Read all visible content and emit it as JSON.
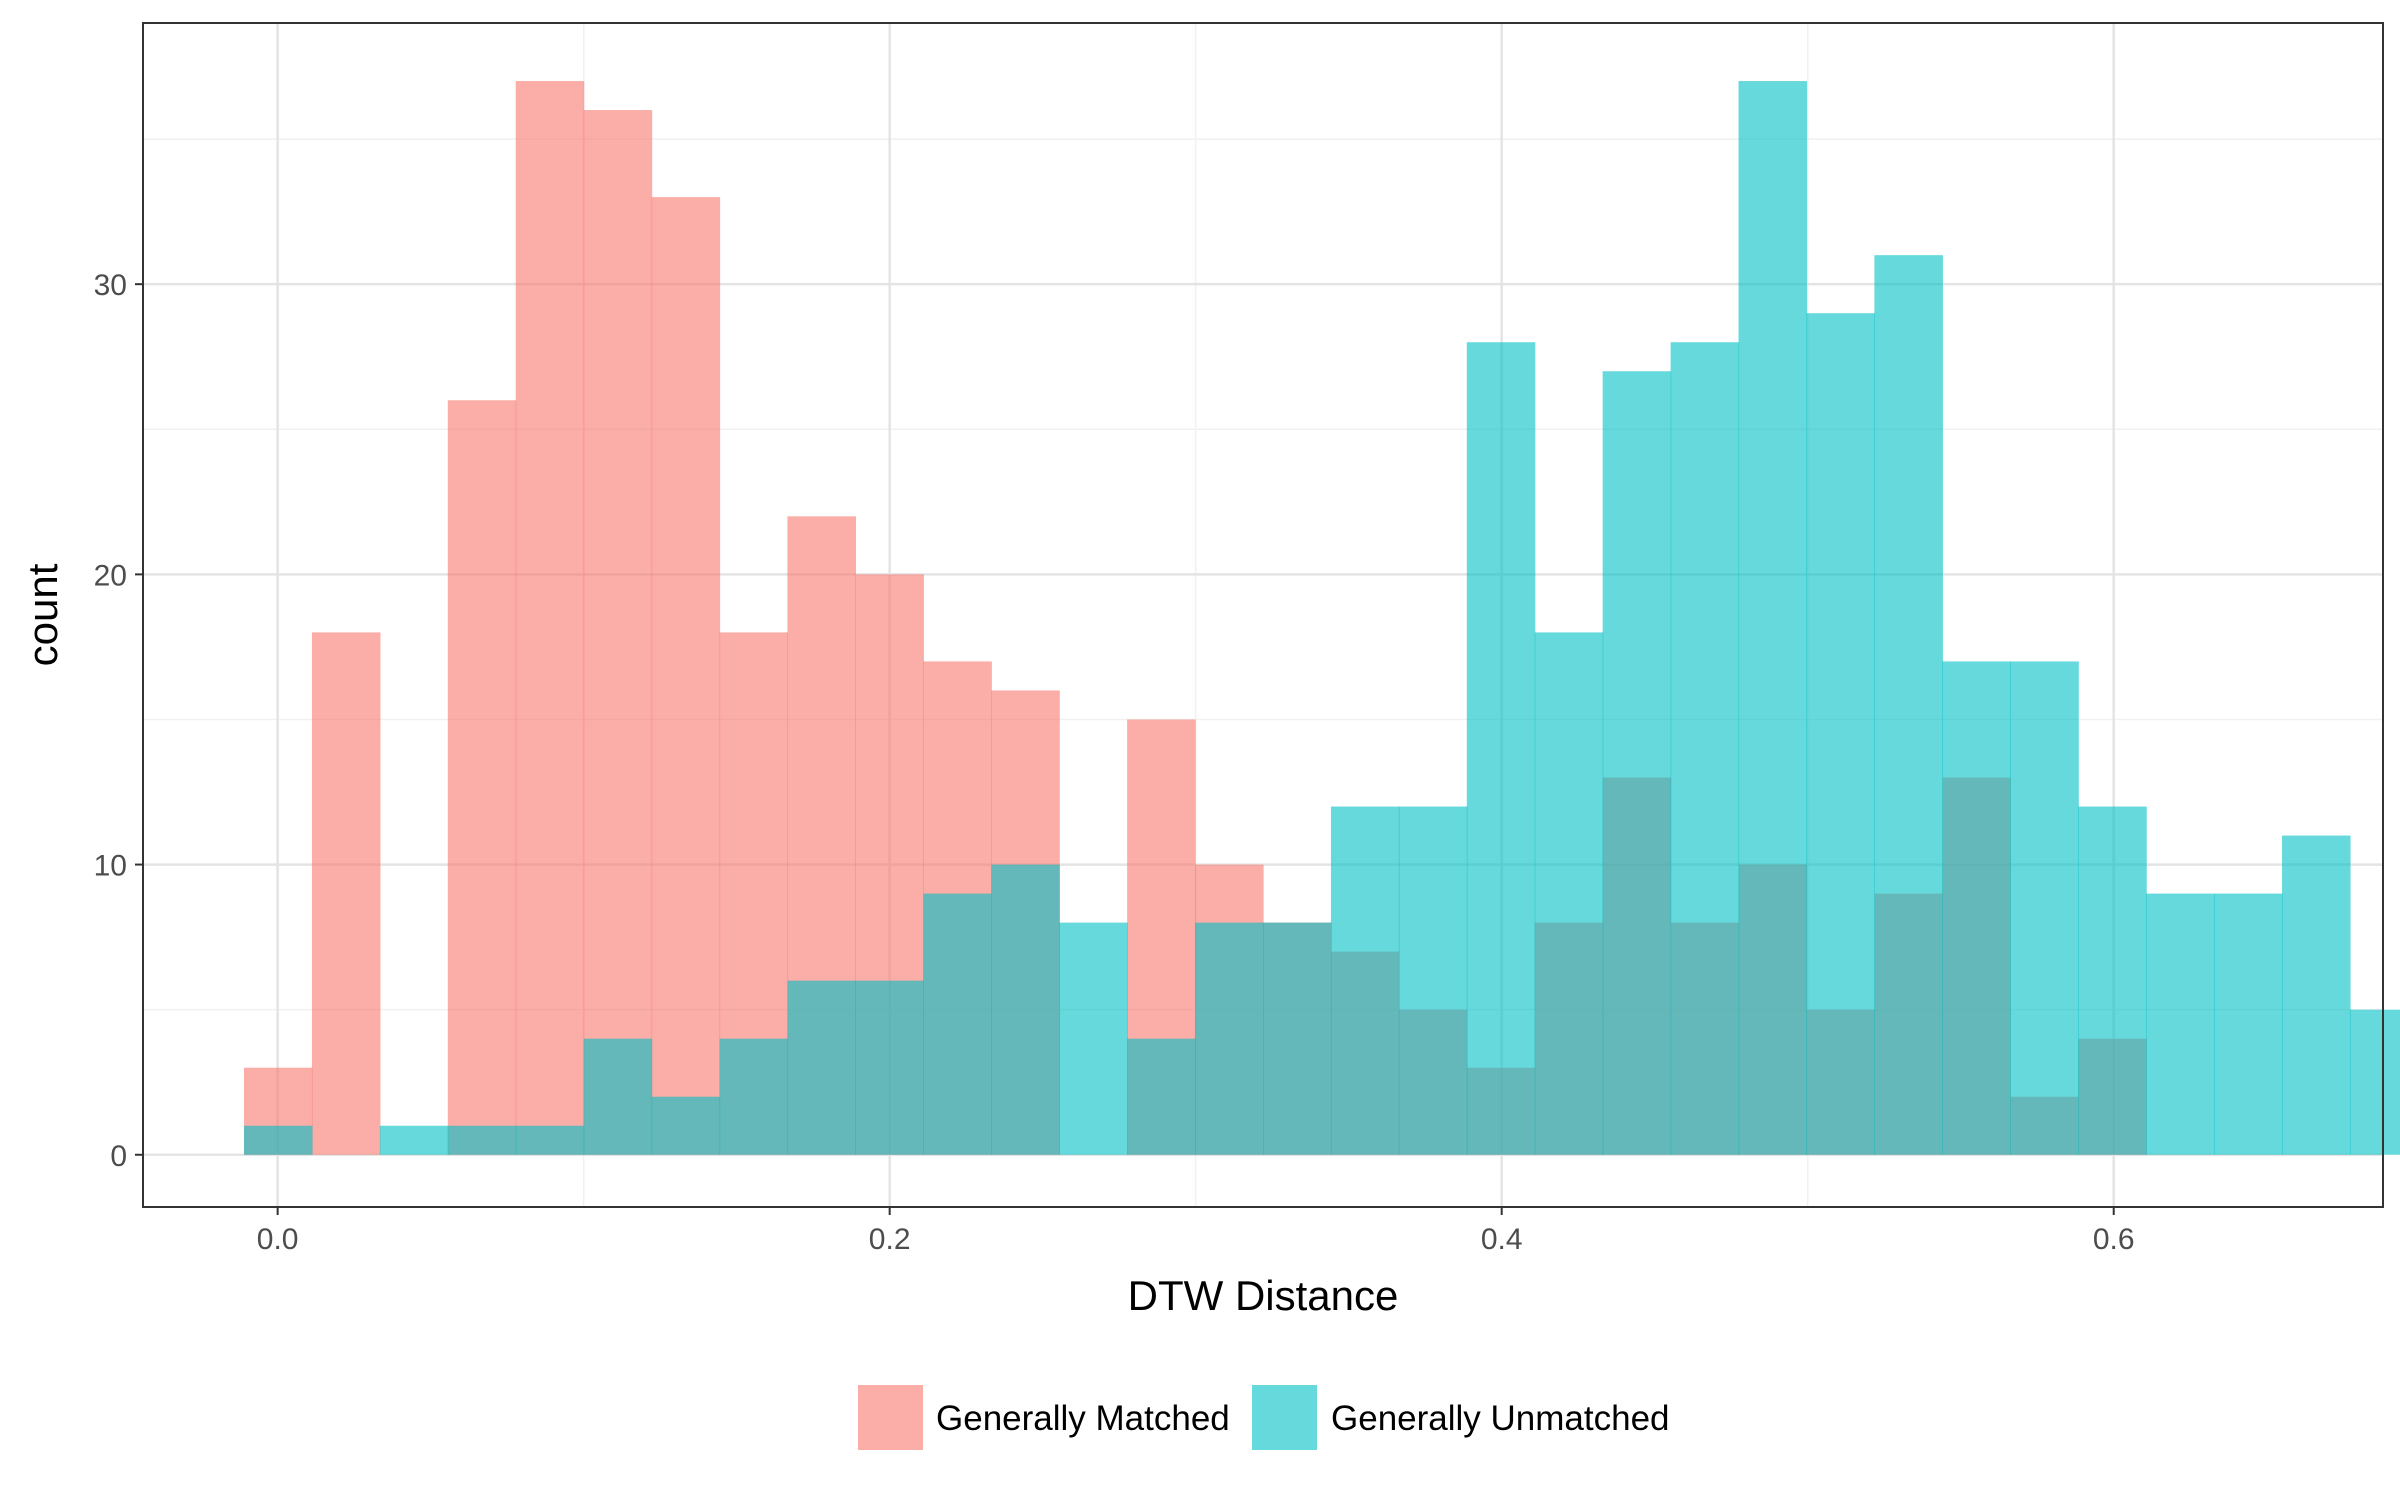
{
  "chart_data": {
    "type": "bar",
    "subtype": "overlapping-histogram",
    "title": "",
    "xlabel": "DTW Distance",
    "ylabel": "count",
    "xlim": [
      -0.044,
      0.688
    ],
    "ylim": [
      -1.8,
      39
    ],
    "x_ticks": [
      0.0,
      0.2,
      0.4,
      0.6
    ],
    "x_tick_labels": [
      "0.0",
      "0.2",
      "0.4",
      "0.6"
    ],
    "y_ticks": [
      0,
      10,
      20,
      30
    ],
    "y_tick_labels": [
      "0",
      "10",
      "20",
      "30"
    ],
    "grid": true,
    "legend_position": "bottom",
    "bin_width": 0.0222,
    "bin_start": -0.011,
    "series": [
      {
        "name": "Generally Matched",
        "color": "#F8766D",
        "values": [
          3,
          18,
          0,
          26,
          37,
          36,
          33,
          18,
          22,
          20,
          17,
          16,
          0,
          15,
          10,
          8,
          7,
          5,
          3,
          8,
          13,
          8,
          10,
          5,
          9,
          13,
          2,
          4,
          0,
          0,
          0
        ]
      },
      {
        "name": "Generally Unmatched",
        "color": "#00BFC4",
        "values": [
          1,
          0,
          1,
          1,
          1,
          4,
          2,
          4,
          6,
          6,
          9,
          10,
          8,
          4,
          8,
          8,
          12,
          12,
          28,
          18,
          27,
          28,
          37,
          29,
          31,
          17,
          17,
          12,
          9,
          9,
          11,
          5
        ]
      }
    ]
  }
}
